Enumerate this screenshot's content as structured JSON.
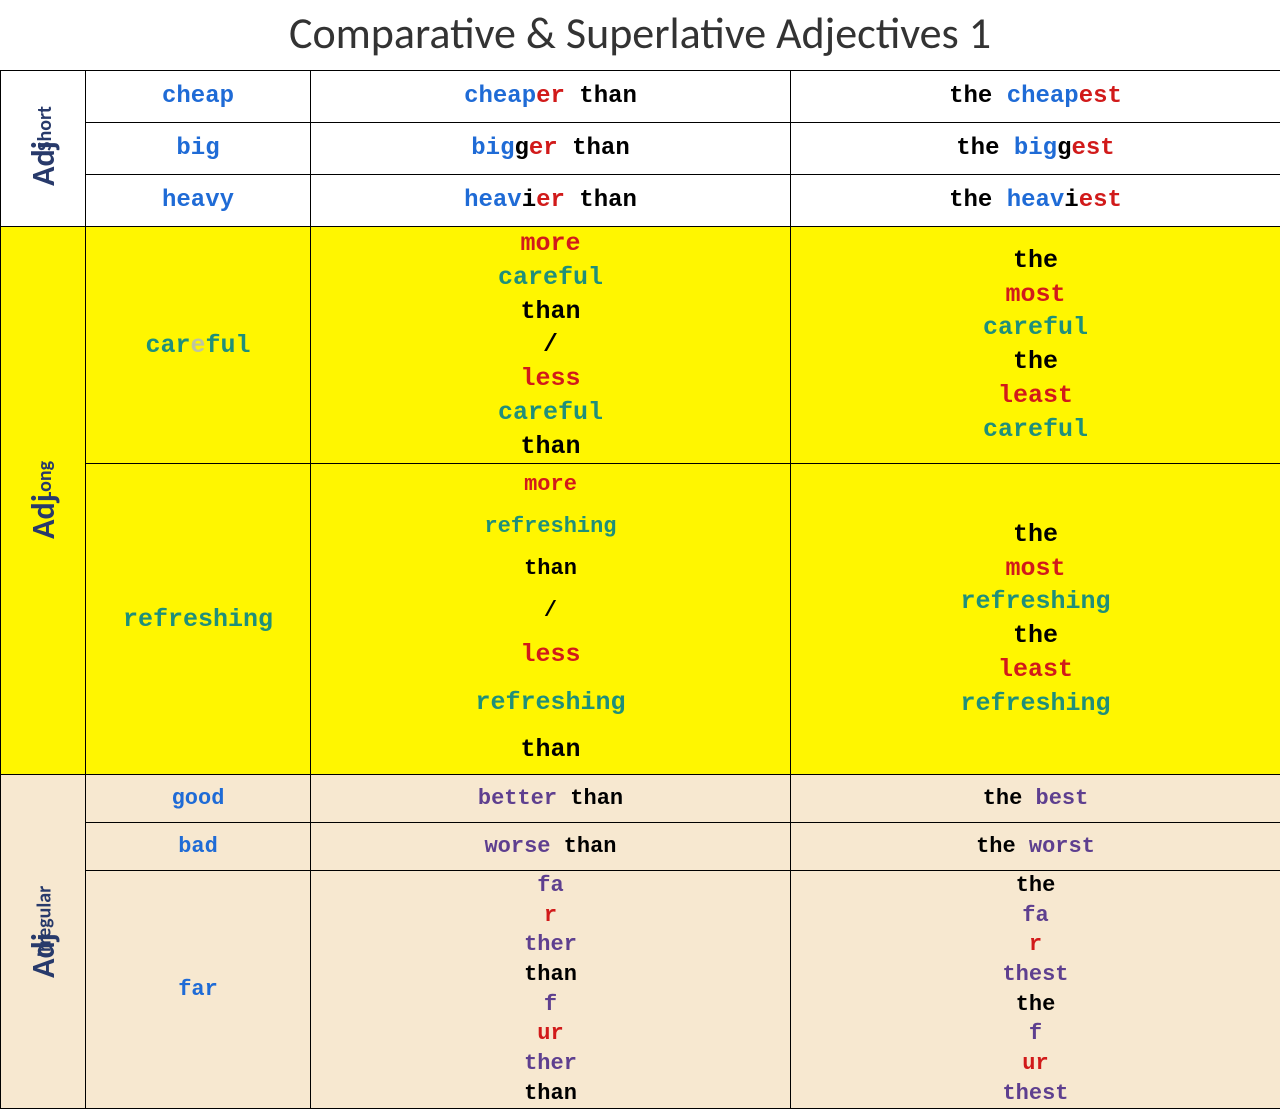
{
  "title": "Comparative & Superlative Adjectives 1",
  "categories": {
    "short": {
      "sm": "Short",
      "big": "Adj"
    },
    "long": {
      "sm": "Long",
      "big": "Adj"
    },
    "irreg": {
      "sm": "Irregular",
      "big": "Adj"
    }
  },
  "colors": {
    "blue": "#1f6bd6",
    "red": "#d11a1a",
    "black": "#000000",
    "teal": "#1f8f7a",
    "purple": "#5e3f8f",
    "navy": "#283a6b",
    "lgrey": "#bfc5a0",
    "sec1_bg": "#ffffff",
    "sec2_bg": "#fff600",
    "sec3_bg": "#f7e8d0"
  },
  "short": [
    {
      "base": [
        {
          "t": "cheap",
          "c": "blue"
        }
      ],
      "comp": [
        {
          "t": "cheap",
          "c": "blue"
        },
        {
          "t": "er",
          "c": "red"
        },
        {
          "t": " than",
          "c": "black"
        }
      ],
      "sup": [
        {
          "t": "the ",
          "c": "black"
        },
        {
          "t": "cheap",
          "c": "blue"
        },
        {
          "t": "est",
          "c": "red"
        }
      ]
    },
    {
      "base": [
        {
          "t": "big",
          "c": "blue"
        }
      ],
      "comp": [
        {
          "t": "big",
          "c": "blue"
        },
        {
          "t": "g",
          "c": "black"
        },
        {
          "t": "er",
          "c": "red"
        },
        {
          "t": " than",
          "c": "black"
        }
      ],
      "sup": [
        {
          "t": "the ",
          "c": "black"
        },
        {
          "t": "big",
          "c": "blue"
        },
        {
          "t": "g",
          "c": "black"
        },
        {
          "t": "est",
          "c": "red"
        }
      ]
    },
    {
      "base": [
        {
          "t": "heavy",
          "c": "blue"
        }
      ],
      "comp": [
        {
          "t": "heav",
          "c": "blue"
        },
        {
          "t": "i",
          "c": "black"
        },
        {
          "t": "er",
          "c": "red"
        },
        {
          "t": " than",
          "c": "black"
        }
      ],
      "sup": [
        {
          "t": "the ",
          "c": "black"
        },
        {
          "t": "heav",
          "c": "blue"
        },
        {
          "t": "i",
          "c": "black"
        },
        {
          "t": "est",
          "c": "red"
        }
      ]
    }
  ],
  "long": [
    {
      "base": [
        {
          "t": "car",
          "c": "teal"
        },
        {
          "t": "e",
          "c": "lgrey"
        },
        {
          "t": "ful",
          "c": "teal"
        }
      ],
      "comp1": [
        {
          "t": "more",
          "c": "red"
        },
        {
          "t": " careful ",
          "c": "teal"
        },
        {
          "t": "than",
          "c": "black"
        },
        {
          "t": " /",
          "c": "black"
        }
      ],
      "comp2": [
        {
          "t": "less",
          "c": "red"
        },
        {
          "t": " careful ",
          "c": "teal"
        },
        {
          "t": "than",
          "c": "black"
        }
      ],
      "sup1": [
        {
          "t": "the ",
          "c": "black"
        },
        {
          "t": "most",
          "c": "red"
        },
        {
          "t": " careful",
          "c": "teal"
        }
      ],
      "sup2": [
        {
          "t": "the ",
          "c": "black"
        },
        {
          "t": "least",
          "c": "red"
        },
        {
          "t": " careful",
          "c": "teal"
        }
      ]
    },
    {
      "base": [
        {
          "t": "refreshing",
          "c": "teal"
        }
      ],
      "comp1": [
        {
          "t": "more",
          "c": "red"
        },
        {
          "t": " refreshing ",
          "c": "teal"
        },
        {
          "t": "than",
          "c": "black"
        },
        {
          "t": " /",
          "c": "black"
        }
      ],
      "comp2": [
        {
          "t": "less",
          "c": "red"
        },
        {
          "t": " refreshing ",
          "c": "teal"
        },
        {
          "t": "than",
          "c": "black"
        }
      ],
      "sup1": [
        {
          "t": "the ",
          "c": "black"
        },
        {
          "t": "most",
          "c": "red"
        },
        {
          "t": " refreshing",
          "c": "teal"
        }
      ],
      "sup2": [
        {
          "t": "the ",
          "c": "black"
        },
        {
          "t": "least",
          "c": "red"
        },
        {
          "t": " refreshing",
          "c": "teal"
        }
      ]
    }
  ],
  "irreg": [
    {
      "base": [
        {
          "t": "good",
          "c": "blue"
        }
      ],
      "comp": [
        {
          "t": "better",
          "c": "purple"
        },
        {
          "t": " than",
          "c": "black"
        }
      ],
      "sup": [
        {
          "t": "the ",
          "c": "black"
        },
        {
          "t": "best",
          "c": "purple"
        }
      ]
    },
    {
      "base": [
        {
          "t": "bad",
          "c": "blue"
        }
      ],
      "comp": [
        {
          "t": "worse",
          "c": "purple"
        },
        {
          "t": " than",
          "c": "black"
        }
      ],
      "sup": [
        {
          "t": "the ",
          "c": "black"
        },
        {
          "t": "worst",
          "c": "purple"
        }
      ]
    },
    {
      "base": [
        {
          "t": "far",
          "c": "blue"
        }
      ],
      "comp1": [
        {
          "t": "fa",
          "c": "purple"
        },
        {
          "t": "r",
          "c": "red"
        },
        {
          "t": "ther",
          "c": "purple"
        },
        {
          "t": " than",
          "c": "black"
        }
      ],
      "comp2": [
        {
          "t": "f",
          "c": "purple"
        },
        {
          "t": "ur",
          "c": "red"
        },
        {
          "t": "ther",
          "c": "purple"
        },
        {
          "t": " than",
          "c": "black"
        }
      ],
      "sup1": [
        {
          "t": "the ",
          "c": "black"
        },
        {
          "t": "fa",
          "c": "purple"
        },
        {
          "t": "r",
          "c": "red"
        },
        {
          "t": "thest",
          "c": "purple"
        }
      ],
      "sup2": [
        {
          "t": "the ",
          "c": "black"
        },
        {
          "t": "f",
          "c": "purple"
        },
        {
          "t": "ur",
          "c": "red"
        },
        {
          "t": "thest",
          "c": "purple"
        }
      ]
    }
  ]
}
